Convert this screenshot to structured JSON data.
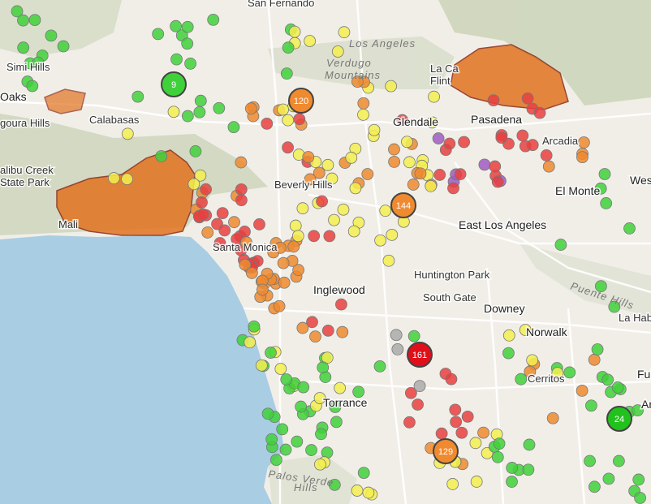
{
  "places": [
    "Simi Hills",
    "Oaks",
    "goura Hills",
    "Calabasas",
    "alibu Creek",
    "State Park",
    "Mali",
    "San Fernando",
    "Los Angeles",
    "Verdugo",
    "Mountains",
    "La Ca",
    "Flint",
    "Glendale",
    "Pasadena",
    "Arcadia",
    "El Monte",
    "West",
    "Beverly Hills",
    "East Los Angeles",
    "Santa Monica",
    "Inglewood",
    "Huntington Park",
    "South Gate",
    "Downey",
    "Puente Hills",
    "La Hab",
    "Norwalk",
    "Cerritos",
    "Ful",
    "An",
    "Torrance",
    "Palos Verde",
    "Hills"
  ],
  "markers": [
    9,
    120,
    144,
    161,
    129,
    24
  ]
}
